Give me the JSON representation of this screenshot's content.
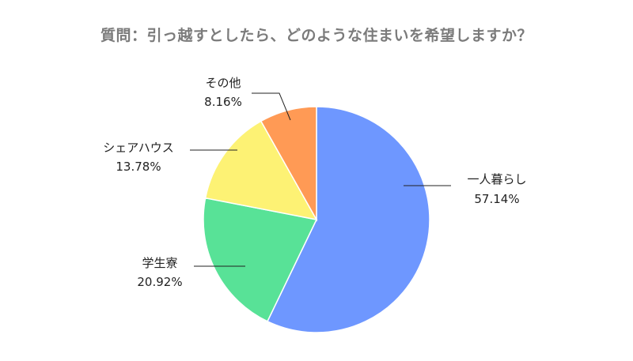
{
  "chart_data": {
    "type": "pie",
    "title": "質問：引っ越すとしたら、どのような住まいを希望しますか？",
    "slices": [
      {
        "label": "一人暮らし",
        "value": 57.14,
        "value_label": "57.14%",
        "color": "#6e97ff"
      },
      {
        "label": "学生寮",
        "value": 20.92,
        "value_label": "20.92%",
        "color": "#58e297"
      },
      {
        "label": "シェアハウス",
        "value": 13.78,
        "value_label": "13.78%",
        "color": "#fdf274"
      },
      {
        "label": "その他",
        "value": 8.16,
        "value_label": "8.16%",
        "color": "#ff9a55"
      }
    ],
    "start": "12 o'clock",
    "direction": "clockwise"
  }
}
